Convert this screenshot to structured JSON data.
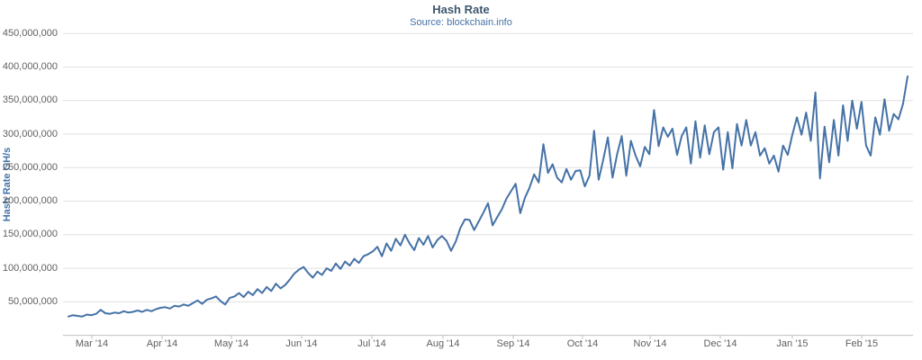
{
  "chart_data": {
    "type": "line",
    "title": "Hash Rate",
    "subtitle": "Source: blockchain.info",
    "xlabel": "",
    "ylabel": "Hash Rate GH/s",
    "unit": "GH/s",
    "legend": "none",
    "grid": "horizontal",
    "x_tick_labels": [
      "Mar '14",
      "Apr '14",
      "May '14",
      "Jun '14",
      "Jul '14",
      "Aug '14",
      "Sep '14",
      "Oct '14",
      "Nov '14",
      "Dec '14",
      "Jan '15",
      "Feb '15"
    ],
    "y_tick_labels": [
      "50,000,000",
      "100,000,000",
      "150,000,000",
      "200,000,000",
      "250,000,000",
      "300,000,000",
      "350,000,000",
      "400,000,000",
      "450,000,000"
    ],
    "y_tick_values_million_ghs": [
      50,
      100,
      150,
      200,
      250,
      300,
      350,
      400,
      450
    ],
    "ylim_million_ghs": [
      0,
      450
    ],
    "x_range_description": "daily values, mid-Feb 2014 through mid-Feb 2015",
    "values_million_ghs": [
      28,
      30,
      29,
      28,
      31,
      30,
      32,
      38,
      33,
      32,
      34,
      33,
      36,
      34,
      35,
      37,
      35,
      38,
      36,
      39,
      41,
      42,
      40,
      44,
      43,
      46,
      44,
      48,
      52,
      47,
      53,
      55,
      58,
      51,
      46,
      56,
      58,
      63,
      57,
      65,
      60,
      69,
      63,
      72,
      66,
      77,
      70,
      75,
      83,
      92,
      98,
      102,
      93,
      86,
      95,
      90,
      100,
      96,
      107,
      99,
      110,
      104,
      114,
      108,
      118,
      121,
      125,
      132,
      118,
      137,
      126,
      144,
      134,
      150,
      137,
      127,
      145,
      135,
      148,
      131,
      142,
      148,
      141,
      126,
      140,
      160,
      173,
      172,
      157,
      170,
      183,
      197,
      164,
      176,
      188,
      204,
      215,
      226,
      182,
      205,
      220,
      240,
      228,
      285,
      242,
      255,
      235,
      228,
      248,
      232,
      245,
      246,
      222,
      238,
      305,
      232,
      262,
      295,
      235,
      270,
      297,
      238,
      290,
      268,
      252,
      281,
      270,
      336,
      282,
      310,
      296,
      308,
      269,
      297,
      310,
      256,
      319,
      265,
      313,
      270,
      303,
      310,
      247,
      303,
      249,
      315,
      283,
      321,
      283,
      303,
      268,
      279,
      256,
      268,
      244,
      283,
      269,
      299,
      325,
      299,
      332,
      290,
      362,
      234,
      311,
      258,
      321,
      268,
      343,
      290,
      350,
      308,
      348,
      283,
      268,
      325,
      299,
      352,
      305,
      330,
      322,
      345,
      386
    ],
    "colors": {
      "line": "#4572A7",
      "title": "#3E576F",
      "subtitle_link": "#4572A7",
      "axis_label": "#606060",
      "gridline": "#E0E0E0",
      "axis_line": "#C0C0C0"
    }
  }
}
